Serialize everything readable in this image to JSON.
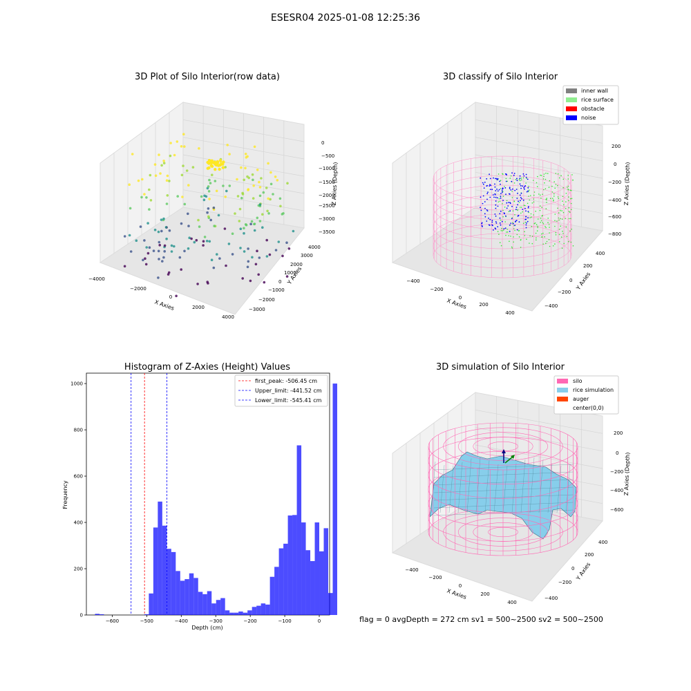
{
  "suptitle": "ESESR04 2025-01-08 12:25:36",
  "status_line": "flag = 0     avgDepth = 272 cm  sv1 = 500~2500  sv2 = 500~2500",
  "raw_plot": {
    "title": "3D Plot of Silo Interior(row data)",
    "x_label": "X Axies",
    "y_label": "Y Axies",
    "z_label": "Z Axies (Depth)",
    "x_ticks": [
      "−4000",
      "−2000",
      "0",
      "2000",
      "4000"
    ],
    "y_ticks": [
      "−3000",
      "−2000",
      "−1000",
      "0",
      "1000",
      "2000",
      "3000",
      "4000"
    ],
    "z_ticks": [
      "0",
      "−500",
      "−1000",
      "−1500",
      "−2000",
      "−2500",
      "−3000",
      "−3500"
    ]
  },
  "classify_plot": {
    "title": "3D classify of Silo Interior",
    "x_label": "X Axies",
    "y_label": "Y Axies",
    "z_label": "Z Axies (Depth)",
    "x_ticks": [
      "−400",
      "−200",
      "0",
      "200",
      "400"
    ],
    "y_ticks": [
      "−400",
      "−200",
      "0",
      "200",
      "400"
    ],
    "z_ticks": [
      "200",
      "0",
      "−200",
      "−400",
      "−600",
      "−800"
    ],
    "legend": [
      {
        "label": "inner wall",
        "color": "#808080"
      },
      {
        "label": "rice surface",
        "color": "#90ee90"
      },
      {
        "label": "obstacle",
        "color": "#ff0000"
      },
      {
        "label": "noise",
        "color": "#0000ff"
      }
    ]
  },
  "simulation_plot": {
    "title": "3D simulation of Silo Interior",
    "x_label": "X Axies",
    "y_label": "Y Axies",
    "z_label": "Z Axies (Depth)",
    "x_ticks": [
      "−400",
      "−200",
      "0",
      "200",
      "400"
    ],
    "y_ticks": [
      "−400",
      "−200",
      "0",
      "200",
      "400"
    ],
    "z_ticks": [
      "200",
      "0",
      "−200",
      "−400",
      "−600"
    ],
    "legend": [
      {
        "label": "silo",
        "color": "#ff69b4"
      },
      {
        "label": "rice simulation",
        "color": "#87ceeb"
      },
      {
        "label": "auger",
        "color": "#ff4500"
      },
      {
        "label": "center(0,0)",
        "color": ""
      }
    ]
  },
  "chart_data": {
    "type": "bar",
    "title": "Histogram of Z-Axies (Height) Values",
    "xlabel": "Depth (cm)",
    "ylabel": "Frequency",
    "xlim": [
      -675,
      30
    ],
    "ylim": [
      0,
      1045
    ],
    "x_ticks": [
      -600,
      -500,
      -400,
      -300,
      -200,
      -100,
      0
    ],
    "y_ticks": [
      0,
      200,
      400,
      600,
      800,
      1000
    ],
    "bar_color": "#0000ff",
    "bin_width": 13,
    "bin_edges_start": -650,
    "values": [
      5,
      3,
      0,
      0,
      0,
      0,
      0,
      0,
      0,
      0,
      0,
      3,
      93,
      378,
      490,
      386,
      286,
      272,
      190,
      148,
      155,
      180,
      160,
      100,
      90,
      103,
      50,
      65,
      73,
      20,
      10,
      10,
      15,
      10,
      20,
      35,
      40,
      50,
      45,
      165,
      208,
      288,
      308,
      430,
      432,
      733,
      400,
      280,
      233,
      400,
      275,
      375,
      95,
      1000
    ],
    "vlines": [
      {
        "label": "first_peak: -506.45 cm",
        "x": -506.45,
        "color": "#ff0000"
      },
      {
        "label": "Upper_limit: -441.52 cm",
        "x": -441.52,
        "color": "#0000ff"
      },
      {
        "label": "Lower_limit: -545.41 cm",
        "x": -545.41,
        "color": "#0000ff"
      }
    ]
  }
}
